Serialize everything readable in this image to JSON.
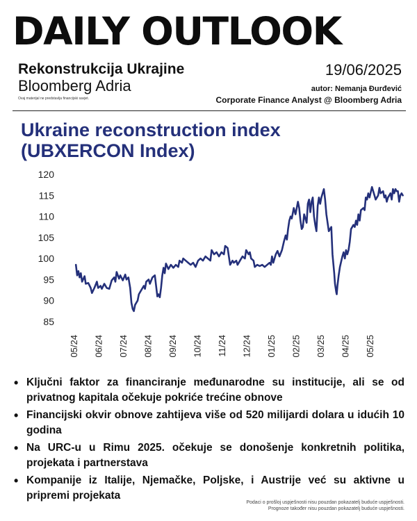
{
  "header": {
    "masthead": "DAILY OUTLOOK",
    "subtitle": "Rekonstrukcija Ukrajine",
    "brand": "Bloomberg Adria",
    "disclaimer_small": "Ovaj materijal ne predstavlja financijski savjet.",
    "date": "19/06/2025",
    "author": "autor: Nemanja Đurđević",
    "role": "Corporate Finance Analyst @ Bloomberg Adria"
  },
  "chart_title_line1": "Ukraine reconstruction index",
  "chart_title_line2": "(UBXERCON Index)",
  "chart_data": {
    "type": "line",
    "title": "Ukraine reconstruction index (UBXERCON Index)",
    "xlabel": "",
    "ylabel": "",
    "ylim": [
      85,
      120
    ],
    "yticks": [
      85,
      90,
      95,
      100,
      105,
      110,
      115,
      120
    ],
    "xticks": [
      "05/24",
      "06/24",
      "07/24",
      "08/24",
      "09/24",
      "10/24",
      "11/24",
      "12/24",
      "01/25",
      "02/25",
      "03/25",
      "04/25",
      "05/25"
    ],
    "grid": false,
    "color": "#24307a",
    "series": [
      {
        "name": "",
        "points": [
          [
            -0.05,
            98.5
          ],
          [
            0.0,
            96.0
          ],
          [
            0.05,
            97.0
          ],
          [
            0.1,
            95.5
          ],
          [
            0.15,
            96.5
          ],
          [
            0.2,
            94.5
          ],
          [
            0.3,
            95.8
          ],
          [
            0.35,
            94.0
          ],
          [
            0.45,
            94.2
          ],
          [
            0.55,
            93.0
          ],
          [
            0.6,
            91.8
          ],
          [
            0.7,
            93.0
          ],
          [
            0.8,
            94.5
          ],
          [
            0.85,
            93.0
          ],
          [
            0.95,
            93.5
          ],
          [
            1.0,
            92.8
          ],
          [
            1.1,
            94.0
          ],
          [
            1.2,
            93.0
          ],
          [
            1.3,
            92.8
          ],
          [
            1.4,
            94.8
          ],
          [
            1.5,
            95.5
          ],
          [
            1.55,
            94.5
          ],
          [
            1.6,
            96.8
          ],
          [
            1.7,
            95.2
          ],
          [
            1.75,
            96.0
          ],
          [
            1.85,
            94.8
          ],
          [
            1.95,
            96.2
          ],
          [
            2.0,
            95.0
          ],
          [
            2.08,
            95.5
          ],
          [
            2.15,
            93.0
          ],
          [
            2.2,
            89.5
          ],
          [
            2.25,
            88.0
          ],
          [
            2.3,
            87.5
          ],
          [
            2.35,
            89.0
          ],
          [
            2.45,
            90.0
          ],
          [
            2.5,
            91.5
          ],
          [
            2.6,
            92.5
          ],
          [
            2.7,
            93.5
          ],
          [
            2.75,
            92.8
          ],
          [
            2.8,
            94.5
          ],
          [
            2.9,
            95.0
          ],
          [
            2.95,
            94.0
          ],
          [
            3.05,
            95.5
          ],
          [
            3.15,
            96.0
          ],
          [
            3.2,
            93.5
          ],
          [
            3.25,
            91.0
          ],
          [
            3.3,
            91.5
          ],
          [
            3.35,
            90.8
          ],
          [
            3.4,
            93.0
          ],
          [
            3.45,
            96.0
          ],
          [
            3.5,
            97.8
          ],
          [
            3.55,
            96.5
          ],
          [
            3.6,
            98.8
          ],
          [
            3.7,
            97.5
          ],
          [
            3.8,
            98.5
          ],
          [
            3.9,
            97.8
          ],
          [
            4.0,
            98.5
          ],
          [
            4.1,
            98.0
          ],
          [
            4.15,
            99.5
          ],
          [
            4.25,
            99.0
          ],
          [
            4.3,
            100.0
          ],
          [
            4.4,
            99.5
          ],
          [
            4.5,
            99.0
          ],
          [
            4.6,
            98.5
          ],
          [
            4.7,
            99.0
          ],
          [
            4.8,
            98.0
          ],
          [
            4.9,
            99.5
          ],
          [
            5.0,
            100.0
          ],
          [
            5.1,
            99.5
          ],
          [
            5.2,
            100.5
          ],
          [
            5.3,
            100.0
          ],
          [
            5.4,
            99.5
          ],
          [
            5.45,
            102.0
          ],
          [
            5.55,
            101.0
          ],
          [
            5.65,
            101.5
          ],
          [
            5.75,
            100.5
          ],
          [
            5.85,
            101.5
          ],
          [
            5.95,
            101.0
          ],
          [
            6.0,
            103.0
          ],
          [
            6.1,
            102.5
          ],
          [
            6.15,
            100.5
          ],
          [
            6.2,
            98.5
          ],
          [
            6.3,
            99.5
          ],
          [
            6.35,
            99.0
          ],
          [
            6.45,
            99.5
          ],
          [
            6.5,
            98.5
          ],
          [
            6.6,
            99.5
          ],
          [
            6.7,
            100.5
          ],
          [
            6.8,
            100.0
          ],
          [
            6.85,
            102.0
          ],
          [
            6.95,
            101.0
          ],
          [
            7.0,
            101.5
          ],
          [
            7.05,
            100.0
          ],
          [
            7.15,
            99.5
          ],
          [
            7.2,
            98.0
          ],
          [
            7.3,
            98.5
          ],
          [
            7.4,
            98.2
          ],
          [
            7.5,
            98.5
          ],
          [
            7.6,
            98.0
          ],
          [
            7.7,
            98.5
          ],
          [
            7.8,
            99.0
          ],
          [
            7.85,
            98.5
          ],
          [
            7.9,
            100.5
          ],
          [
            7.95,
            99.0
          ],
          [
            8.0,
            100.0
          ],
          [
            8.05,
            101.0
          ],
          [
            8.12,
            101.8
          ],
          [
            8.2,
            100.5
          ],
          [
            8.3,
            102.0
          ],
          [
            8.38,
            104.0
          ],
          [
            8.45,
            105.5
          ],
          [
            8.5,
            104.5
          ],
          [
            8.55,
            107.0
          ],
          [
            8.6,
            109.0
          ],
          [
            8.65,
            110.0
          ],
          [
            8.7,
            109.5
          ],
          [
            8.78,
            112.0
          ],
          [
            8.85,
            110.5
          ],
          [
            8.95,
            113.5
          ],
          [
            9.0,
            112.0
          ],
          [
            9.05,
            109.0
          ],
          [
            9.1,
            107.0
          ],
          [
            9.15,
            107.5
          ],
          [
            9.2,
            110.5
          ],
          [
            9.3,
            108.5
          ],
          [
            9.35,
            113.0
          ],
          [
            9.4,
            114.0
          ],
          [
            9.45,
            111.0
          ],
          [
            9.5,
            113.5
          ],
          [
            9.55,
            114.5
          ],
          [
            9.6,
            110.0
          ],
          [
            9.65,
            108.0
          ],
          [
            9.7,
            106.5
          ],
          [
            9.75,
            112.5
          ],
          [
            9.8,
            114.5
          ],
          [
            9.85,
            113.0
          ],
          [
            9.9,
            114.5
          ],
          [
            10.0,
            116.5
          ],
          [
            10.05,
            114.0
          ],
          [
            10.1,
            110.5
          ],
          [
            10.2,
            106.5
          ],
          [
            10.3,
            107.5
          ],
          [
            10.35,
            101.0
          ],
          [
            10.42,
            96.5
          ],
          [
            10.45,
            94.0
          ],
          [
            10.5,
            92.0
          ],
          [
            10.52,
            91.5
          ],
          [
            10.55,
            93.5
          ],
          [
            10.6,
            96.0
          ],
          [
            10.65,
            98.0
          ],
          [
            10.75,
            100.5
          ],
          [
            10.8,
            101.5
          ],
          [
            10.85,
            100.0
          ],
          [
            10.9,
            102.0
          ],
          [
            10.95,
            101.0
          ],
          [
            11.0,
            102.0
          ],
          [
            11.05,
            104.0
          ],
          [
            11.1,
            107.0
          ],
          [
            11.2,
            108.0
          ],
          [
            11.25,
            107.5
          ],
          [
            11.3,
            109.0
          ],
          [
            11.35,
            108.0
          ],
          [
            11.4,
            110.5
          ],
          [
            11.45,
            109.0
          ],
          [
            11.5,
            111.5
          ],
          [
            11.6,
            112.0
          ],
          [
            11.65,
            111.5
          ],
          [
            11.7,
            114.5
          ],
          [
            11.75,
            114.0
          ],
          [
            11.8,
            115.5
          ],
          [
            11.85,
            114.5
          ],
          [
            11.95,
            117.0
          ],
          [
            12.0,
            116.0
          ],
          [
            12.05,
            115.0
          ],
          [
            12.1,
            114.0
          ],
          [
            12.2,
            115.0
          ],
          [
            12.25,
            116.8
          ],
          [
            12.3,
            115.5
          ],
          [
            12.4,
            116.0
          ],
          [
            12.45,
            114.5
          ],
          [
            12.5,
            115.0
          ],
          [
            12.55,
            113.5
          ],
          [
            12.6,
            114.5
          ],
          [
            12.7,
            115.5
          ],
          [
            12.75,
            114.0
          ],
          [
            12.8,
            116.5
          ],
          [
            12.85,
            115.5
          ],
          [
            12.9,
            116.5
          ],
          [
            12.95,
            116.0
          ],
          [
            13.0,
            116.0
          ],
          [
            13.05,
            113.5
          ],
          [
            13.1,
            115.0
          ],
          [
            13.15,
            115.5
          ],
          [
            13.2,
            115.0
          ]
        ]
      }
    ]
  },
  "bullets": [
    "Ključni faktor za financiranje međunarodne su institucije, ali se od privatnog kapitala očekuje pokriće trećine obnove",
    "Financijski okvir obnove zahtijeva više od 520 milijardi dolara u idućih 10 godina",
    "Na URC-u u Rimu 2025. očekuje se donošenje konkretnih politika, projekata i partnerstava",
    "Kompanije iz Italije, Njemačke, Poljske, i Austrije već su aktivne u pripremi projekata"
  ],
  "footer": {
    "line1": "Podaci o prošloj uspješnosti nisu pouzdan pokazatelj buduće uspješnosti.",
    "line2": "Prognoze također nisu pouzdan pokazatelj buduće uspješnosti."
  }
}
